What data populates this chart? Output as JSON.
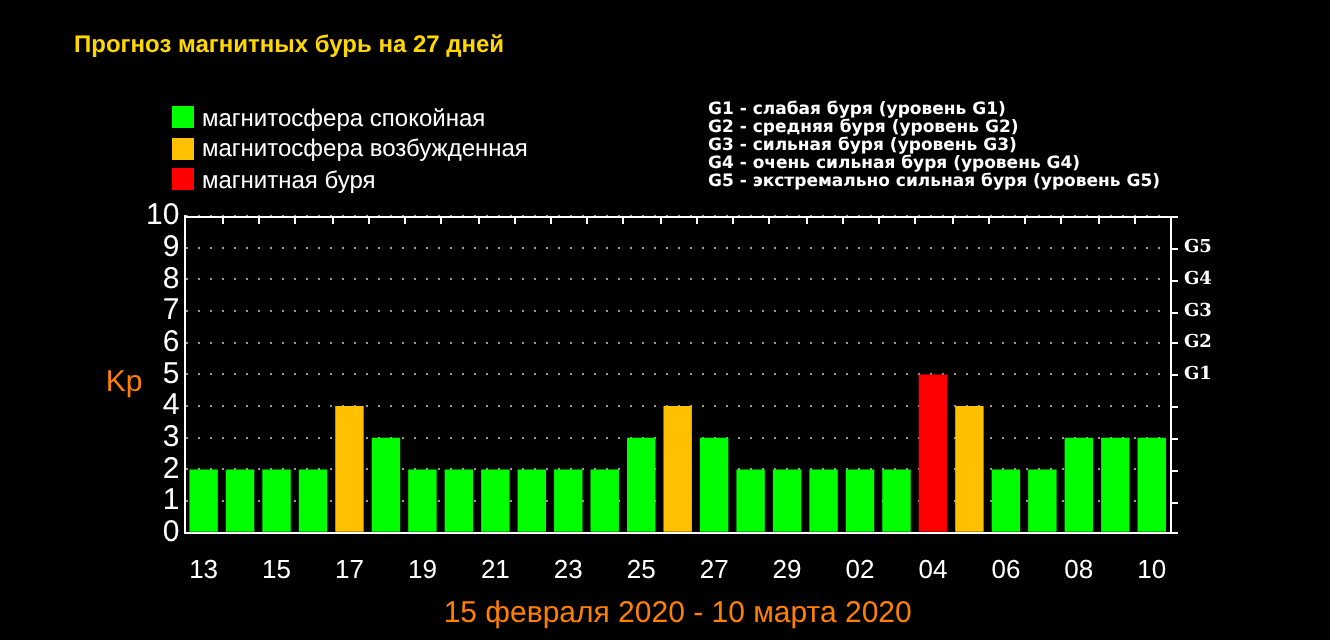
{
  "chart_data": {
    "type": "bar",
    "title": "Прогноз магнитных бурь на 27 дней",
    "xlabel": "15 февраля 2020 - 10 марта 2020",
    "ylabel": "Kp",
    "categories": [
      "13",
      null,
      "15",
      null,
      "17",
      null,
      "19",
      null,
      "21",
      null,
      "23",
      null,
      "25",
      null,
      "27",
      null,
      "29",
      null,
      "02",
      null,
      "04",
      null,
      "06",
      null,
      "08",
      null,
      "10"
    ],
    "stacked": true,
    "series": [
      {
        "name": "магнитосфера спокойная",
        "color": "#00ff00",
        "values": [
          2,
          2,
          2,
          2,
          null,
          3,
          2,
          2,
          2,
          2,
          2,
          2,
          3,
          null,
          3,
          2,
          2,
          2,
          2,
          2,
          null,
          null,
          2,
          2,
          3,
          3,
          3
        ]
      },
      {
        "name": "магнитосфера возбужденная",
        "color": "#ffc000",
        "values": [
          null,
          null,
          null,
          null,
          4,
          null,
          null,
          null,
          null,
          null,
          null,
          null,
          null,
          4,
          null,
          null,
          null,
          null,
          null,
          null,
          null,
          4,
          null,
          null,
          null,
          null,
          null
        ]
      },
      {
        "name": "магнитная буря",
        "color": "#ff0000",
        "values": [
          null,
          null,
          null,
          null,
          null,
          null,
          null,
          null,
          null,
          null,
          null,
          null,
          null,
          null,
          null,
          null,
          null,
          null,
          null,
          null,
          5,
          null,
          null,
          null,
          null,
          null,
          null
        ]
      }
    ],
    "ylim": [
      0,
      10
    ],
    "yticks": [
      0,
      1,
      2,
      3,
      4,
      5,
      6,
      7,
      8,
      9,
      10
    ],
    "grid": "y",
    "legend": "top left",
    "annotations": [
      "G1 - слабая буря (уровень G1)",
      "G2 - средняя буря (уровень G2)",
      "G3 - сильная буря (уровень G3)",
      "G4 - очень сильная буря (уровень G4)",
      "G5 - экстремально сильная буря (уровень G5)",
      "G1",
      "G2",
      "G3",
      "G4",
      "G5"
    ]
  }
}
